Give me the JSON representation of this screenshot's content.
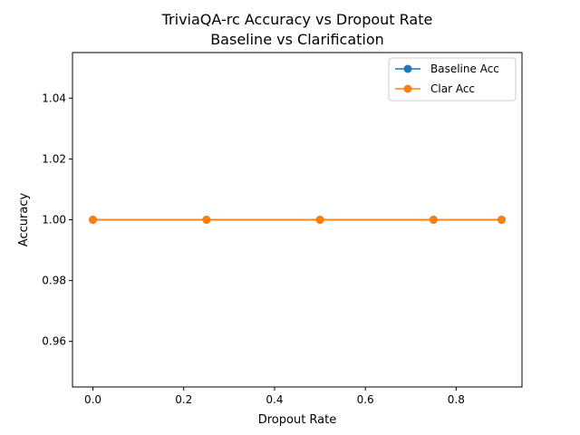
{
  "chart_data": {
    "type": "line",
    "title": "TriviaQA-rc Accuracy vs Dropout Rate",
    "subtitle": "Baseline vs Clarification",
    "xlabel": "Dropout Rate",
    "ylabel": "Accuracy",
    "x": [
      0.0,
      0.25,
      0.5,
      0.75,
      0.9
    ],
    "xlim": [
      -0.045,
      0.945
    ],
    "ylim": [
      0.945,
      1.055
    ],
    "xticks": [
      0.0,
      0.2,
      0.4,
      0.6,
      0.8
    ],
    "xtick_labels": [
      "0.0",
      "0.2",
      "0.4",
      "0.6",
      "0.8"
    ],
    "yticks": [
      0.96,
      0.98,
      1.0,
      1.02,
      1.04
    ],
    "ytick_labels": [
      "0.96",
      "0.98",
      "1.00",
      "1.02",
      "1.04"
    ],
    "grid": false,
    "legend_position": "top-right",
    "series": [
      {
        "name": "Baseline Acc",
        "values": [
          1.0,
          1.0,
          1.0,
          1.0,
          1.0
        ],
        "color": "#1f77b4",
        "marker": "circle"
      },
      {
        "name": "Clar Acc",
        "values": [
          1.0,
          1.0,
          1.0,
          1.0,
          1.0
        ],
        "color": "#ff7f0e",
        "marker": "circle"
      }
    ]
  }
}
